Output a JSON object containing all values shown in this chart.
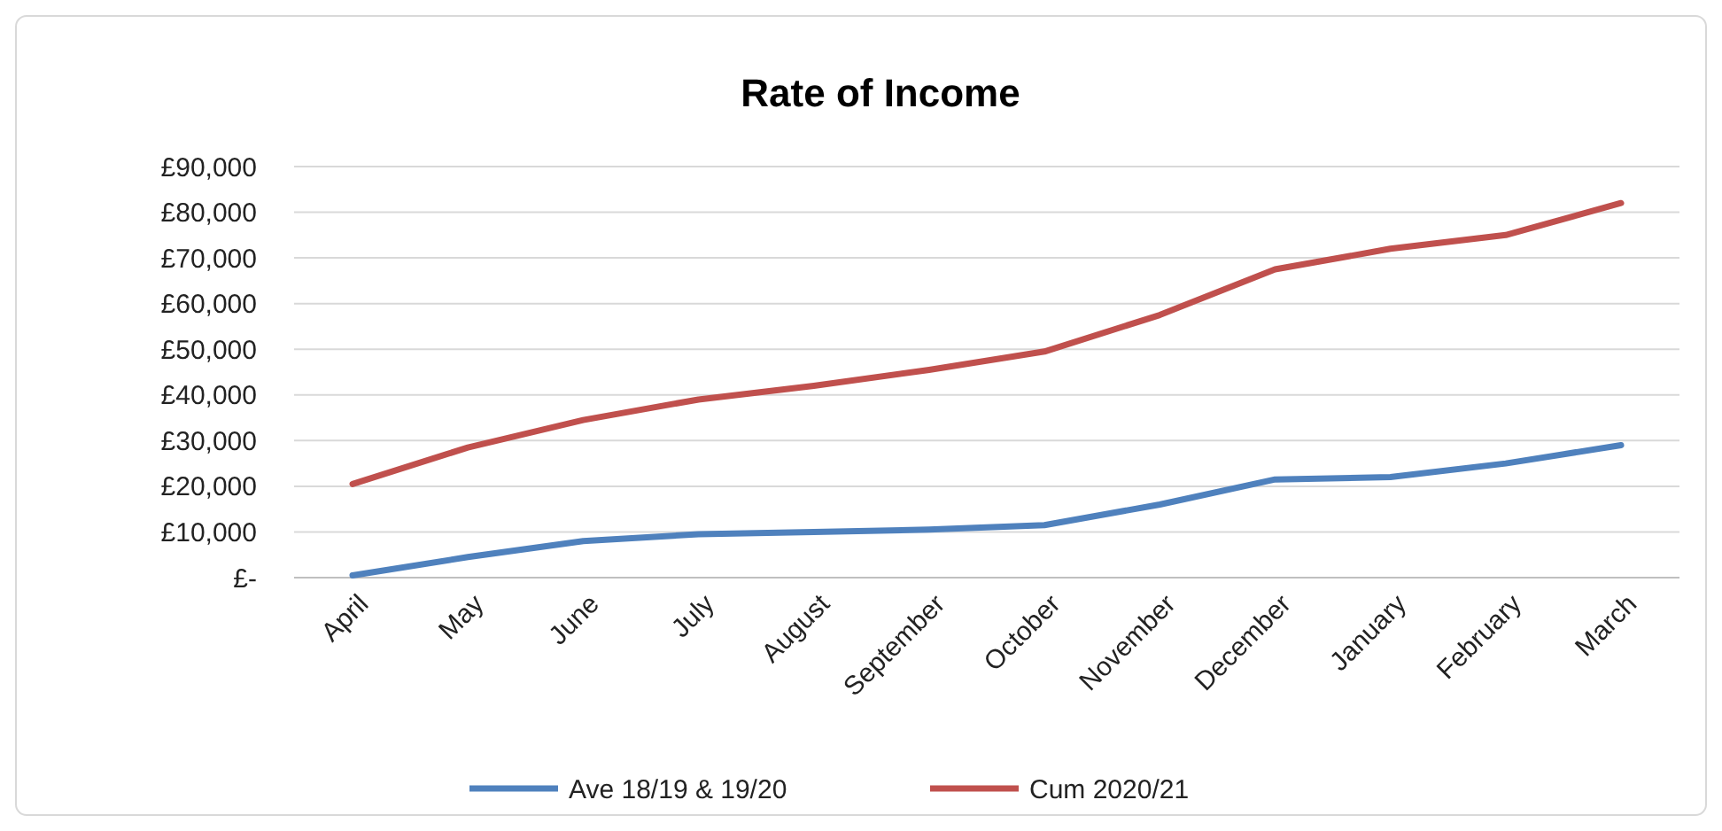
{
  "chart_data": {
    "type": "line",
    "title": "Rate of Income",
    "categories": [
      "April",
      "May",
      "June",
      "July",
      "August",
      "September",
      "October",
      "November",
      "December",
      "January",
      "February",
      "March"
    ],
    "series": [
      {
        "name": "Ave 18/19 & 19/20",
        "color": "#4f81bd",
        "values": [
          500,
          4500,
          8000,
          9500,
          10000,
          10500,
          11500,
          16000,
          21500,
          22000,
          25000,
          29000
        ]
      },
      {
        "name": "Cum 2020/21",
        "color": "#c0504d",
        "values": [
          20500,
          28500,
          34500,
          39000,
          42000,
          45500,
          49500,
          57500,
          67500,
          72000,
          75000,
          82000
        ]
      }
    ],
    "ylim": [
      0,
      90000
    ],
    "yticks": [
      {
        "value": 0,
        "label": "£-"
      },
      {
        "value": 10000,
        "label": "£10,000"
      },
      {
        "value": 20000,
        "label": "£20,000"
      },
      {
        "value": 30000,
        "label": "£30,000"
      },
      {
        "value": 40000,
        "label": "£40,000"
      },
      {
        "value": 50000,
        "label": "£50,000"
      },
      {
        "value": 60000,
        "label": "£60,000"
      },
      {
        "value": 70000,
        "label": "£70,000"
      },
      {
        "value": 80000,
        "label": "£80,000"
      },
      {
        "value": 90000,
        "label": "£90,000"
      }
    ],
    "grid": "y",
    "legend": "bottom",
    "marker": "none",
    "line_style": "solid"
  }
}
